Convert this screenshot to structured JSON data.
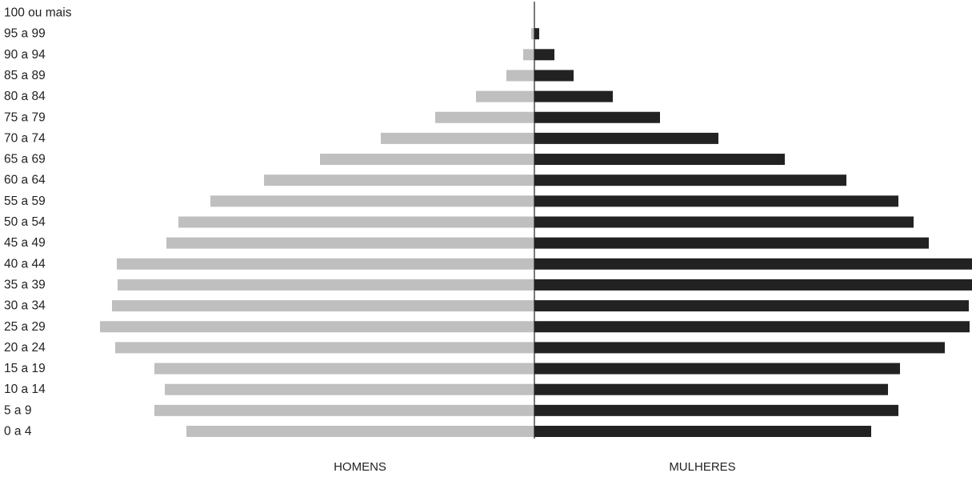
{
  "chart_data": {
    "type": "bar",
    "orientation": "horizontal-population-pyramid",
    "categories": [
      "0 a 4",
      "5 a 9",
      "10 a 14",
      "15 a 19",
      "20 a 24",
      "25 a 29",
      "30 a 34",
      "35 a 39",
      "40 a 44",
      "45 a 49",
      "50 a 54",
      "55 a 59",
      "60 a 64",
      "65 a 69",
      "70 a 74",
      "75 a 79",
      "80 a 84",
      "85 a 89",
      "90 a 94",
      "95 a 99",
      "100 ou mais"
    ],
    "series": [
      {
        "name": "HOMENS",
        "color": "#bfbfbf",
        "values": [
          435,
          475,
          462,
          475,
          524,
          543,
          528,
          521,
          522,
          460,
          445,
          405,
          338,
          268,
          192,
          124,
          73,
          35,
          14,
          4,
          0
        ]
      },
      {
        "name": "MULHERES",
        "color": "#222222",
        "values": [
          421,
          455,
          442,
          457,
          513,
          544,
          543,
          548,
          548,
          493,
          474,
          455,
          390,
          313,
          230,
          157,
          98,
          49,
          25,
          6,
          0
        ]
      }
    ],
    "xlabel_left": "HOMENS",
    "xlabel_right": "MULHERES",
    "grid": false
  }
}
